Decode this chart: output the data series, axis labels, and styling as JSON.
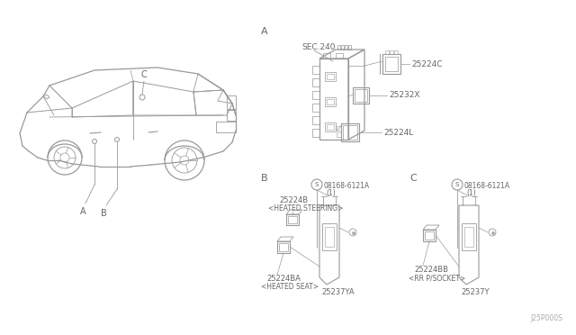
{
  "bg_color": "#ffffff",
  "lc": "#999999",
  "tc": "#666666",
  "fig_w": 6.4,
  "fig_h": 3.72,
  "dpi": 100,
  "sec240_label": "SEC.240",
  "parts_A": [
    "25224C",
    "25232X",
    "25224L"
  ],
  "parts_B_top": "25224B",
  "parts_B_top_sub": "<HEATED STEERING>",
  "parts_B_left": "25224BA",
  "parts_B_left_sub": "<HEATED SEAT>",
  "parts_B_right": "25237YA",
  "parts_B_screw": "08168-6121A",
  "parts_B_screw_sub": "(1)",
  "parts_C_left": "25224BB",
  "parts_C_left_sub": "<RR P/SOCKET>",
  "parts_C_right": "25237Y",
  "parts_C_screw": "08168-6121A",
  "parts_C_screw_sub": "(1)",
  "footer": "J25P000S",
  "label_A": "A",
  "label_B": "B",
  "label_C": "C"
}
